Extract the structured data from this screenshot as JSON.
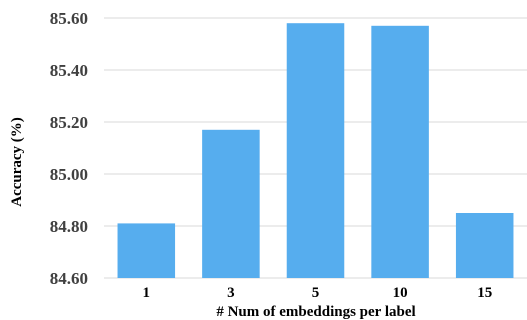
{
  "chart_data": {
    "type": "bar",
    "categories": [
      "1",
      "3",
      "5",
      "10",
      "15"
    ],
    "values": [
      84.81,
      85.17,
      85.58,
      85.57,
      84.85
    ],
    "yticks": [
      "84.60",
      "84.80",
      "85.00",
      "85.20",
      "85.40",
      "85.60"
    ],
    "ylim": [
      84.6,
      85.6
    ],
    "xlabel": "# Num of  embeddings per label",
    "ylabel": "Accuracy (%)",
    "grid": true,
    "bar_color": "#56ADEE",
    "grid_color": "#D9D9D9"
  }
}
